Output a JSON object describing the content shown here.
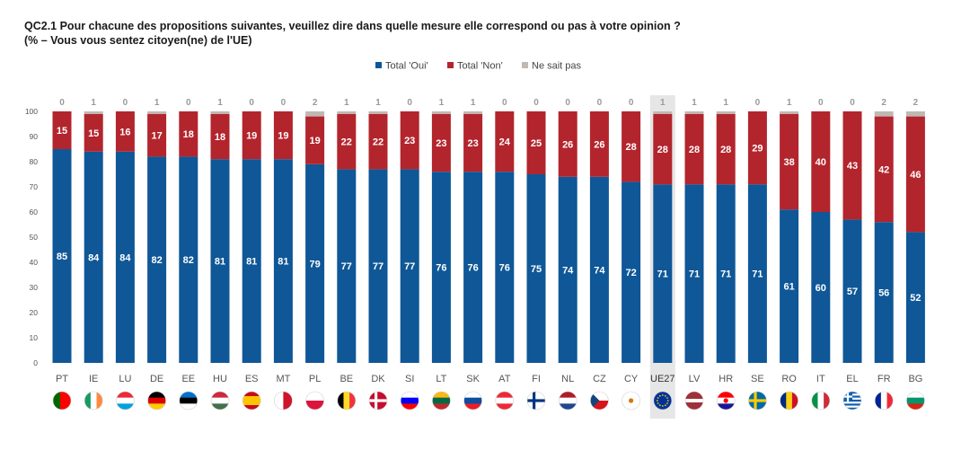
{
  "header": {
    "title_line1": "QC2.1 Pour chacune des propositions suivantes, veuillez dire dans quelle mesure elle correspond ou pas à votre opinion ?",
    "title_line2": "(%  – Vous vous sentez citoyen(ne) de l'UE)"
  },
  "colors": {
    "oui": "#0f5797",
    "non": "#b3252d",
    "nsp": "#c0b8b2",
    "highlight": "#e6e6e6",
    "axis_text": "#555555",
    "top_label": "#9a9a9a"
  },
  "chart_data": {
    "type": "bar",
    "stacked": true,
    "title": "QC2.1 Pour chacune des propositions suivantes, veuillez dire dans quelle mesure elle correspond ou pas à votre opinion ?",
    "subtitle": "(%  – Vous vous sentez citoyen(ne) de l'UE)",
    "legend_position": "top-right",
    "ylim": [
      0,
      100
    ],
    "yticks": [
      0,
      10,
      20,
      30,
      40,
      50,
      60,
      70,
      80,
      90,
      100
    ],
    "highlight_category": "UE27",
    "categories": [
      "PT",
      "IE",
      "LU",
      "DE",
      "EE",
      "HU",
      "ES",
      "MT",
      "PL",
      "BE",
      "DK",
      "SI",
      "LT",
      "SK",
      "AT",
      "FI",
      "NL",
      "CZ",
      "CY",
      "UE27",
      "LV",
      "HR",
      "SE",
      "RO",
      "IT",
      "EL",
      "FR",
      "BG"
    ],
    "flags": [
      "portugal-flag-icon",
      "ireland-flag-icon",
      "luxembourg-flag-icon",
      "germany-flag-icon",
      "estonia-flag-icon",
      "hungary-flag-icon",
      "spain-flag-icon",
      "malta-flag-icon",
      "poland-flag-icon",
      "belgium-flag-icon",
      "denmark-flag-icon",
      "slovenia-flag-icon",
      "lithuania-flag-icon",
      "slovakia-flag-icon",
      "austria-flag-icon",
      "finland-flag-icon",
      "netherlands-flag-icon",
      "czechia-flag-icon",
      "cyprus-flag-icon",
      "eu-flag-icon",
      "latvia-flag-icon",
      "croatia-flag-icon",
      "sweden-flag-icon",
      "romania-flag-icon",
      "italy-flag-icon",
      "greece-flag-icon",
      "france-flag-icon",
      "bulgaria-flag-icon"
    ],
    "series": [
      {
        "name": "Total 'Oui'",
        "values": [
          85,
          84,
          84,
          82,
          82,
          81,
          81,
          81,
          79,
          77,
          77,
          77,
          76,
          76,
          76,
          75,
          74,
          74,
          72,
          71,
          71,
          71,
          71,
          61,
          60,
          57,
          56,
          52
        ]
      },
      {
        "name": "Total 'Non'",
        "values": [
          15,
          15,
          16,
          17,
          18,
          18,
          19,
          19,
          19,
          22,
          22,
          23,
          23,
          23,
          24,
          25,
          26,
          26,
          28,
          28,
          28,
          28,
          29,
          38,
          40,
          43,
          42,
          46
        ]
      },
      {
        "name": "Ne sait pas",
        "values": [
          0,
          1,
          0,
          1,
          0,
          1,
          0,
          0,
          2,
          1,
          1,
          0,
          1,
          1,
          0,
          0,
          0,
          0,
          0,
          1,
          1,
          1,
          0,
          1,
          0,
          0,
          2,
          2
        ]
      }
    ]
  }
}
